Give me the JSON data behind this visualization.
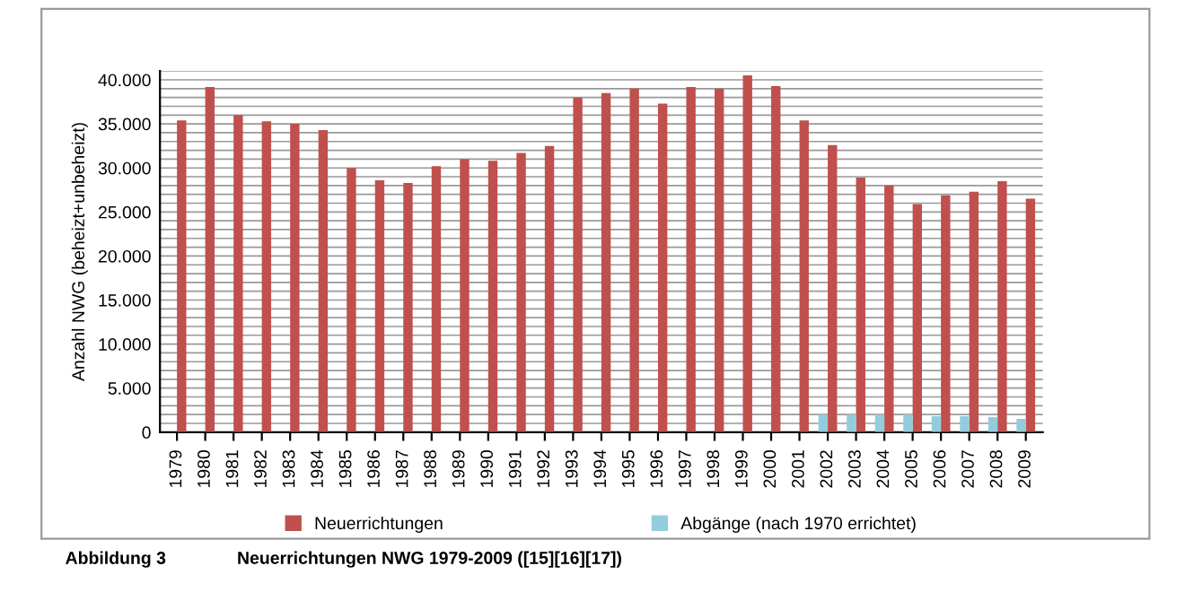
{
  "chart_data": {
    "type": "bar",
    "ylabel": "Anzahl NWG (beheizt+unbeheizt)",
    "categories": [
      "1979",
      "1980",
      "1981",
      "1982",
      "1983",
      "1984",
      "1985",
      "1986",
      "1987",
      "1988",
      "1989",
      "1990",
      "1991",
      "1992",
      "1993",
      "1994",
      "1995",
      "1996",
      "1997",
      "1998",
      "1999",
      "2000",
      "2001",
      "2002",
      "2003",
      "2004",
      "2005",
      "2006",
      "2007",
      "2008",
      "2009"
    ],
    "series": [
      {
        "name": "Neuerrichtungen",
        "color": "#c0504d",
        "values": [
          35400,
          39200,
          36000,
          35300,
          35000,
          34300,
          30000,
          28600,
          28300,
          30200,
          31000,
          30800,
          31700,
          32500,
          38000,
          38500,
          39000,
          37300,
          39200,
          39000,
          40500,
          39300,
          35400,
          32600,
          28900,
          28000,
          25900,
          26900,
          27300,
          28500,
          26500
        ]
      },
      {
        "name": "Abgänge (nach 1970 errichtet)",
        "color": "#93cddd",
        "values": [
          null,
          null,
          null,
          null,
          null,
          null,
          null,
          null,
          null,
          null,
          null,
          null,
          null,
          null,
          null,
          null,
          null,
          null,
          null,
          null,
          null,
          null,
          null,
          2000,
          2000,
          2000,
          2000,
          1800,
          1800,
          1700,
          1500
        ]
      }
    ],
    "ylim": [
      0,
      41000
    ],
    "yticks": [
      0,
      {
        "value": 1000,
        "label": null
      },
      {
        "value": 2000,
        "label": null
      },
      {
        "value": 3000,
        "label": null
      },
      {
        "value": 4000,
        "label": null
      },
      {
        "value": 5000,
        "label": "5.000"
      },
      {
        "value": 6000,
        "label": null
      },
      {
        "value": 7000,
        "label": null
      },
      {
        "value": 8000,
        "label": null
      },
      {
        "value": 9000,
        "label": null
      },
      {
        "value": 10000,
        "label": "10.000"
      },
      {
        "value": 11000,
        "label": null
      },
      {
        "value": 12000,
        "label": null
      },
      {
        "value": 13000,
        "label": null
      },
      {
        "value": 14000,
        "label": null
      },
      {
        "value": 15000,
        "label": "15.000"
      },
      {
        "value": 16000,
        "label": null
      },
      {
        "value": 17000,
        "label": null
      },
      {
        "value": 18000,
        "label": null
      },
      {
        "value": 19000,
        "label": null
      },
      {
        "value": 20000,
        "label": "20.000"
      },
      {
        "value": 21000,
        "label": null
      },
      {
        "value": 22000,
        "label": null
      },
      {
        "value": 23000,
        "label": null
      },
      {
        "value": 24000,
        "label": null
      },
      {
        "value": 25000,
        "label": "25.000"
      },
      {
        "value": 26000,
        "label": null
      },
      {
        "value": 27000,
        "label": null
      },
      {
        "value": 28000,
        "label": null
      },
      {
        "value": 29000,
        "label": null
      },
      {
        "value": 30000,
        "label": "30.000"
      },
      {
        "value": 31000,
        "label": null
      },
      {
        "value": 32000,
        "label": null
      },
      {
        "value": 33000,
        "label": null
      },
      {
        "value": 34000,
        "label": null
      },
      {
        "value": 35000,
        "label": "35.000"
      },
      {
        "value": 36000,
        "label": null
      },
      {
        "value": 37000,
        "label": null
      },
      {
        "value": 38000,
        "label": null
      },
      {
        "value": 39000,
        "label": null
      },
      {
        "value": 40000,
        "label": "40.000"
      },
      {
        "value": 41000,
        "label": null
      }
    ],
    "grid": "y",
    "legend": "bottom",
    "annotations": [
      "Abbildung 3",
      "Neuerrichtungen NWG 1979-2009 ([15][16][17])"
    ]
  }
}
